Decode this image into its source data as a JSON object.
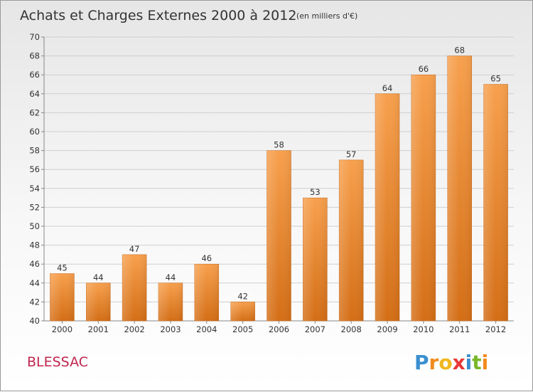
{
  "chart_data": {
    "type": "bar",
    "title": "Achats et Charges Externes 2000 à 2012",
    "subtitle": "(en milliers d'€)",
    "categories": [
      "2000",
      "2001",
      "2002",
      "2003",
      "2004",
      "2005",
      "2006",
      "2007",
      "2008",
      "2009",
      "2010",
      "2011",
      "2012"
    ],
    "values": [
      45,
      44,
      47,
      44,
      46,
      42,
      58,
      53,
      57,
      64,
      66,
      68,
      65
    ],
    "xlabel": "",
    "ylabel": "",
    "ylim": [
      40,
      70
    ],
    "yticks": [
      40,
      42,
      44,
      46,
      48,
      50,
      52,
      54,
      56,
      58,
      60,
      62,
      64,
      66,
      68,
      70
    ],
    "grid": true,
    "legend": "none",
    "bar_color_top": "#f7a04d",
    "bar_color_bottom": "#d46e16"
  },
  "footer": {
    "commune": "BLESSAC",
    "commune_color": "#c0254e",
    "logo_letters": [
      "P",
      "r",
      "o",
      "x",
      "i",
      "t",
      "i"
    ],
    "logo_colors": [
      "#3a8fd0",
      "#f08a1c",
      "#f0b81c",
      "#e83838",
      "#3a8fd0",
      "#79b828",
      "#f08a1c"
    ]
  }
}
